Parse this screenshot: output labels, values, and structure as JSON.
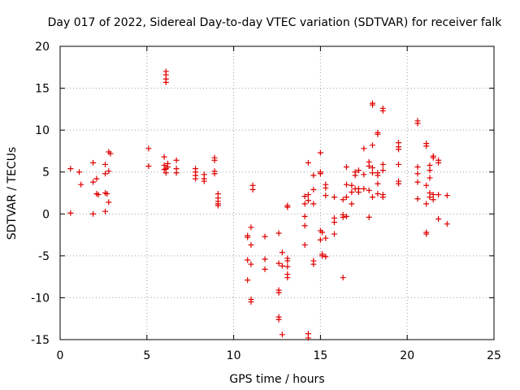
{
  "chart_data": {
    "type": "scatter",
    "title": "Day 017 of 2022, Sidereal Day-to-day VTEC variation (SDTVAR) for receiver falk",
    "xlabel": "GPS time / hours",
    "ylabel": "SDTVAR / TECUs",
    "xlim": [
      0,
      25
    ],
    "ylim": [
      -15,
      20
    ],
    "grid": true,
    "x_ticks": [
      "0",
      "5",
      "10",
      "15",
      "20",
      "25"
    ],
    "y_ticks": [
      "20",
      "15",
      "10",
      "5",
      "0",
      "-5",
      "-10",
      "-15"
    ],
    "series": [
      {
        "name": "SDTVAR",
        "color": "#e00000",
        "marker": "+",
        "points": [
          [
            0.6,
            5.4
          ],
          [
            0.6,
            0.1
          ],
          [
            1.1,
            5.0
          ],
          [
            1.2,
            3.5
          ],
          [
            1.9,
            6.1
          ],
          [
            1.9,
            3.8
          ],
          [
            1.9,
            0.0
          ],
          [
            2.1,
            4.2
          ],
          [
            2.1,
            2.4
          ],
          [
            2.2,
            2.3
          ],
          [
            2.6,
            5.9
          ],
          [
            2.6,
            4.8
          ],
          [
            2.6,
            2.5
          ],
          [
            2.6,
            0.3
          ],
          [
            2.7,
            2.4
          ],
          [
            2.8,
            7.4
          ],
          [
            2.8,
            5.1
          ],
          [
            2.8,
            1.4
          ],
          [
            2.9,
            7.2
          ],
          [
            5.1,
            7.8
          ],
          [
            5.1,
            5.7
          ],
          [
            6.0,
            6.8
          ],
          [
            6.0,
            5.8
          ],
          [
            6.0,
            5.3
          ],
          [
            6.1,
            17.0
          ],
          [
            6.1,
            16.6
          ],
          [
            6.1,
            16.1
          ],
          [
            6.1,
            15.7
          ],
          [
            6.1,
            5.4
          ],
          [
            6.1,
            4.9
          ],
          [
            6.2,
            6.0
          ],
          [
            6.2,
            5.6
          ],
          [
            6.7,
            6.4
          ],
          [
            6.7,
            5.4
          ],
          [
            6.7,
            4.9
          ],
          [
            7.8,
            5.4
          ],
          [
            7.8,
            5.0
          ],
          [
            7.8,
            4.6
          ],
          [
            7.8,
            4.2
          ],
          [
            8.3,
            4.7
          ],
          [
            8.3,
            4.2
          ],
          [
            8.3,
            3.9
          ],
          [
            8.9,
            6.7
          ],
          [
            8.9,
            6.4
          ],
          [
            8.9,
            5.1
          ],
          [
            8.9,
            4.8
          ],
          [
            9.1,
            2.4
          ],
          [
            9.1,
            1.9
          ],
          [
            9.1,
            1.5
          ],
          [
            9.1,
            1.2
          ],
          [
            9.1,
            1.0
          ],
          [
            10.8,
            -2.6
          ],
          [
            10.8,
            -2.8
          ],
          [
            10.8,
            -5.5
          ],
          [
            10.8,
            -7.9
          ],
          [
            11.0,
            -1.6
          ],
          [
            11.0,
            -3.7
          ],
          [
            11.0,
            -6.0
          ],
          [
            11.0,
            -10.2
          ],
          [
            11.0,
            -10.5
          ],
          [
            11.1,
            3.4
          ],
          [
            11.1,
            2.9
          ],
          [
            11.8,
            -2.7
          ],
          [
            11.8,
            -5.4
          ],
          [
            11.8,
            -6.6
          ],
          [
            12.6,
            -2.3
          ],
          [
            12.6,
            -5.9
          ],
          [
            12.6,
            -9.1
          ],
          [
            12.6,
            -9.4
          ],
          [
            12.6,
            -12.3
          ],
          [
            12.6,
            -12.6
          ],
          [
            12.8,
            -4.6
          ],
          [
            12.8,
            -6.2
          ],
          [
            12.8,
            -14.4
          ],
          [
            13.1,
            1.0
          ],
          [
            13.1,
            0.8
          ],
          [
            13.1,
            -5.3
          ],
          [
            13.1,
            -5.6
          ],
          [
            13.1,
            -6.3
          ],
          [
            13.1,
            -7.2
          ],
          [
            13.1,
            -7.6
          ],
          [
            14.1,
            2.1
          ],
          [
            14.1,
            1.2
          ],
          [
            14.1,
            -0.3
          ],
          [
            14.1,
            -1.4
          ],
          [
            14.1,
            -3.7
          ],
          [
            14.3,
            6.1
          ],
          [
            14.3,
            2.3
          ],
          [
            14.3,
            1.6
          ],
          [
            14.3,
            -14.3
          ],
          [
            14.3,
            -14.8
          ],
          [
            14.6,
            4.6
          ],
          [
            14.6,
            2.9
          ],
          [
            14.6,
            1.2
          ],
          [
            14.6,
            -5.6
          ],
          [
            14.6,
            -6.0
          ],
          [
            15.0,
            7.3
          ],
          [
            15.0,
            5.0
          ],
          [
            15.0,
            4.8
          ],
          [
            15.0,
            -2.0
          ],
          [
            15.0,
            -3.1
          ],
          [
            15.1,
            -2.2
          ],
          [
            15.1,
            -4.8
          ],
          [
            15.1,
            -5.0
          ],
          [
            15.3,
            3.5
          ],
          [
            15.3,
            3.1
          ],
          [
            15.3,
            2.2
          ],
          [
            15.3,
            -2.9
          ],
          [
            15.3,
            -5.1
          ],
          [
            15.8,
            2.0
          ],
          [
            15.8,
            -0.5
          ],
          [
            15.8,
            -1.0
          ],
          [
            15.8,
            -2.4
          ],
          [
            16.3,
            1.7
          ],
          [
            16.3,
            -0.1
          ],
          [
            16.3,
            -0.4
          ],
          [
            16.3,
            -7.6
          ],
          [
            16.5,
            5.6
          ],
          [
            16.5,
            3.5
          ],
          [
            16.5,
            2.0
          ],
          [
            16.5,
            -0.3
          ],
          [
            16.8,
            3.4
          ],
          [
            16.8,
            2.6
          ],
          [
            16.8,
            1.2
          ],
          [
            17.0,
            5.0
          ],
          [
            17.0,
            4.6
          ],
          [
            17.0,
            3.0
          ],
          [
            17.2,
            5.2
          ],
          [
            17.2,
            3.0
          ],
          [
            17.2,
            2.6
          ],
          [
            17.5,
            7.8
          ],
          [
            17.5,
            4.7
          ],
          [
            17.5,
            3.0
          ],
          [
            17.8,
            6.2
          ],
          [
            17.8,
            5.7
          ],
          [
            17.8,
            2.8
          ],
          [
            17.8,
            -0.4
          ],
          [
            18.0,
            13.2
          ],
          [
            18.0,
            13.0
          ],
          [
            18.0,
            8.2
          ],
          [
            18.0,
            5.5
          ],
          [
            18.0,
            4.9
          ],
          [
            18.0,
            2.0
          ],
          [
            18.3,
            9.7
          ],
          [
            18.3,
            9.5
          ],
          [
            18.3,
            4.9
          ],
          [
            18.3,
            4.6
          ],
          [
            18.3,
            3.6
          ],
          [
            18.3,
            2.4
          ],
          [
            18.6,
            12.6
          ],
          [
            18.6,
            12.3
          ],
          [
            18.6,
            5.9
          ],
          [
            18.6,
            5.2
          ],
          [
            18.6,
            2.3
          ],
          [
            18.6,
            2.0
          ],
          [
            19.5,
            8.5
          ],
          [
            19.5,
            8.0
          ],
          [
            19.5,
            7.7
          ],
          [
            19.5,
            5.9
          ],
          [
            19.5,
            3.9
          ],
          [
            19.5,
            3.6
          ],
          [
            20.6,
            11.1
          ],
          [
            20.6,
            10.8
          ],
          [
            20.6,
            5.6
          ],
          [
            20.6,
            4.8
          ],
          [
            20.6,
            3.8
          ],
          [
            20.6,
            1.8
          ],
          [
            21.1,
            8.4
          ],
          [
            21.1,
            8.1
          ],
          [
            21.1,
            3.4
          ],
          [
            21.1,
            1.2
          ],
          [
            21.1,
            -2.2
          ],
          [
            21.1,
            -2.4
          ],
          [
            21.3,
            5.8
          ],
          [
            21.3,
            5.2
          ],
          [
            21.3,
            4.3
          ],
          [
            21.3,
            2.5
          ],
          [
            21.3,
            2.0
          ],
          [
            21.5,
            6.9
          ],
          [
            21.5,
            6.7
          ],
          [
            21.5,
            2.3
          ],
          [
            21.5,
            1.7
          ],
          [
            21.8,
            6.4
          ],
          [
            21.8,
            6.1
          ],
          [
            21.8,
            2.3
          ],
          [
            21.8,
            -0.6
          ],
          [
            22.3,
            2.2
          ],
          [
            22.3,
            -1.2
          ]
        ]
      }
    ]
  }
}
